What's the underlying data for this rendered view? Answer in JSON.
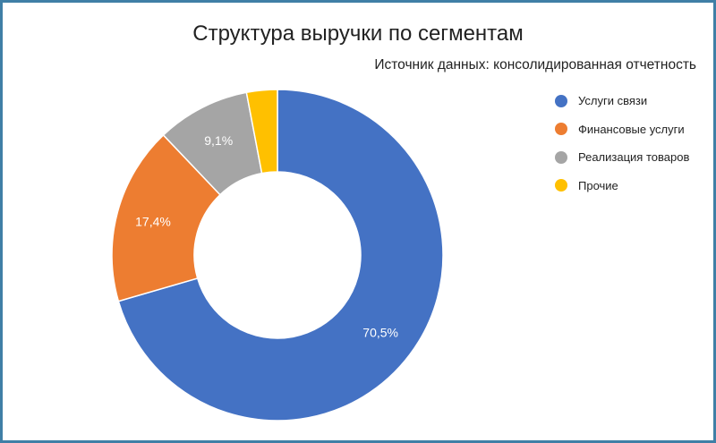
{
  "chart_data": {
    "type": "pie",
    "title": "Структура выручки по сегментам",
    "subtitle": "Источник данных: консолидированная отчетность",
    "categories": [
      "Услуги связи",
      "Финансовые услуги",
      "Реализация товаров",
      "Прочие"
    ],
    "values": [
      70.5,
      17.4,
      9.1,
      3.0
    ],
    "labels": [
      "70,5%",
      "17,4%",
      "9,1%",
      ""
    ],
    "colors": [
      "#4472c4",
      "#ed7d31",
      "#a5a5a5",
      "#ffc000"
    ],
    "donut": true,
    "legend": "right"
  }
}
